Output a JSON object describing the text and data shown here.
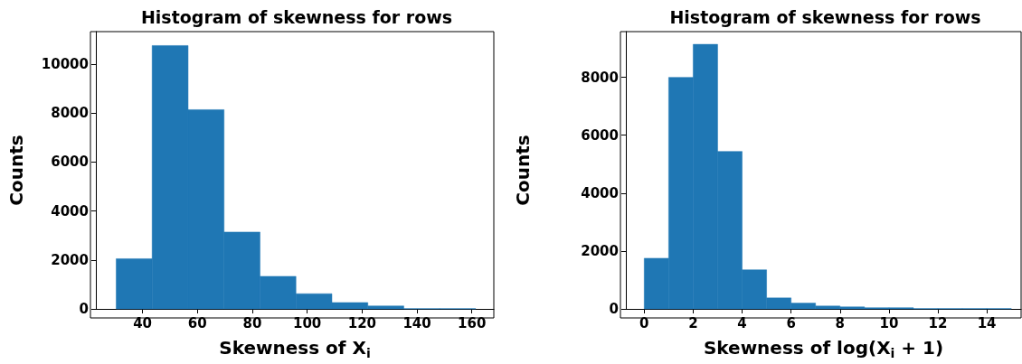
{
  "chart_data": [
    {
      "type": "histogram",
      "title": "Histogram of skewness for rows",
      "xlabel": "Skewness of X$_{i}$",
      "ylabel": "Counts",
      "color": "#1f77b4",
      "bins": [
        30.4,
        43.5,
        56.6,
        69.7,
        82.8,
        95.9,
        109.0,
        122.1,
        135.2,
        148.3,
        161.4
      ],
      "values": [
        2050,
        10760,
        8140,
        3140,
        1330,
        620,
        260,
        120,
        10,
        10
      ],
      "xlim": [
        23,
        168
      ],
      "xticks": [
        40,
        60,
        80,
        100,
        120,
        140,
        160
      ],
      "ylim": [
        0,
        11330
      ],
      "yticks": [
        0,
        2000,
        4000,
        6000,
        8000,
        10000
      ],
      "grid": false
    },
    {
      "type": "histogram",
      "title": "Histogram of skewness for rows",
      "xlabel": "Skewness of log(X$_{i}$ + 1)",
      "ylabel": "Counts",
      "color": "#1f77b4",
      "bins": [
        0,
        1,
        2,
        3,
        4,
        5,
        6,
        7,
        8,
        9,
        10,
        11,
        12,
        13,
        14,
        15
      ],
      "values": [
        1750,
        8000,
        9140,
        5440,
        1350,
        380,
        200,
        100,
        70,
        40,
        40,
        10,
        10,
        10,
        10
      ],
      "xlim": [
        -0.75,
        15.4
      ],
      "xticks": [
        0,
        2,
        4,
        6,
        8,
        10,
        12,
        14
      ],
      "ylim": [
        0,
        9580
      ],
      "yticks": [
        0,
        2000,
        4000,
        6000,
        8000
      ],
      "grid": false
    }
  ]
}
